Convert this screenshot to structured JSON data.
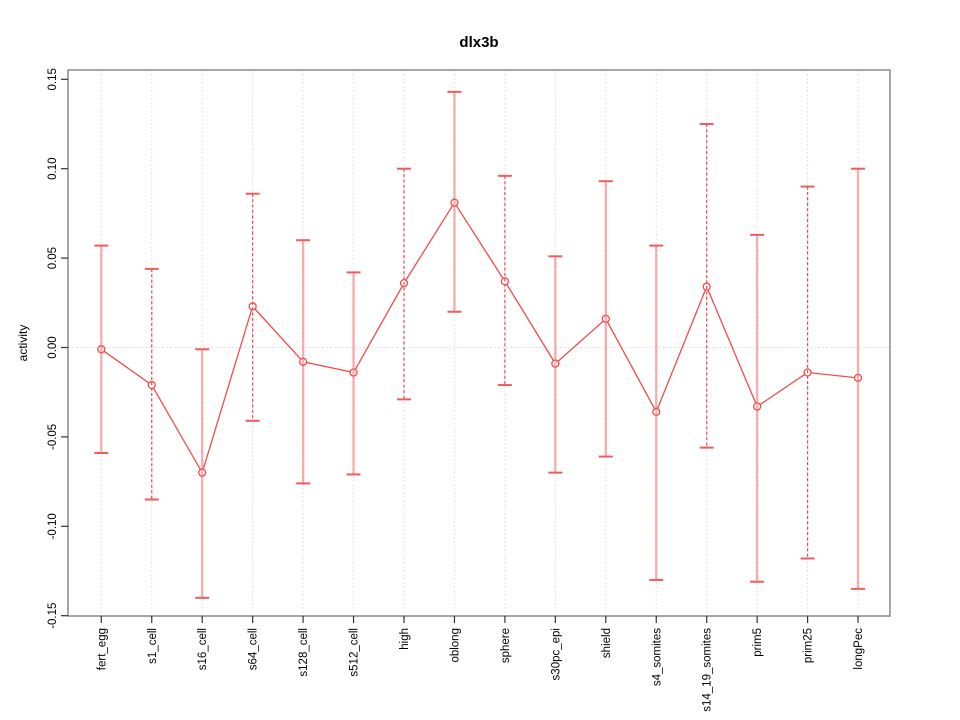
{
  "window": {
    "background": "#ffffff"
  },
  "chart_data": {
    "type": "line",
    "title": "dlx3b",
    "xlabel": "",
    "ylabel": "activity",
    "legend_position": "none",
    "grid": {
      "vertical": "dotted line at every category",
      "horizontal": "dotted line at y=0"
    },
    "marker": "open-circle",
    "categories": [
      "fert_egg",
      "s1_cell",
      "s16_cell",
      "s64_cell",
      "s128_cell",
      "s512_cell",
      "high",
      "oblong",
      "sphere",
      "s30pc_epi",
      "shield",
      "s4_somites",
      "s14_19_somites",
      "prim5",
      "prim25",
      "longPec"
    ],
    "series": [
      {
        "name": "dlx3b activity",
        "means": [
          -0.001,
          -0.021,
          -0.07,
          0.023,
          -0.008,
          -0.014,
          0.036,
          0.081,
          0.037,
          -0.009,
          0.016,
          -0.036,
          0.034,
          -0.033,
          -0.014,
          -0.017
        ],
        "error_upper": [
          0.057,
          0.044,
          -0.001,
          0.086,
          0.06,
          0.042,
          0.1,
          0.143,
          0.096,
          0.051,
          0.093,
          0.057,
          0.125,
          0.063,
          0.09,
          0.1
        ],
        "error_lower": [
          -0.059,
          -0.085,
          -0.14,
          -0.041,
          -0.076,
          -0.071,
          -0.029,
          0.02,
          -0.021,
          -0.07,
          -0.061,
          -0.13,
          -0.056,
          -0.131,
          -0.118,
          -0.135
        ]
      }
    ],
    "y_ticks": [
      {
        "label": "0.15",
        "value": 0.15
      },
      {
        "label": "0.10",
        "value": 0.1
      },
      {
        "label": "0.05",
        "value": 0.05
      },
      {
        "label": "0.00",
        "value": 0.0
      },
      {
        "label": "-0.05",
        "value": -0.05
      },
      {
        "label": "-0.10",
        "value": -0.1
      },
      {
        "label": "-0.15",
        "value": -0.15
      }
    ],
    "ylim": [
      -0.153,
      0.155
    ],
    "colors": {
      "series": "#f14c4c",
      "error_bar_solid": "rgba(243,100,100,0.5)",
      "error_bar_dashed": "#ef4848",
      "error_bar_cap": "#f25b5b",
      "grid": "#d9d9d9",
      "box": "#888888",
      "text": "#000000"
    },
    "error_bar_dashed_indices": [
      1,
      3,
      6,
      8,
      12,
      14
    ]
  }
}
